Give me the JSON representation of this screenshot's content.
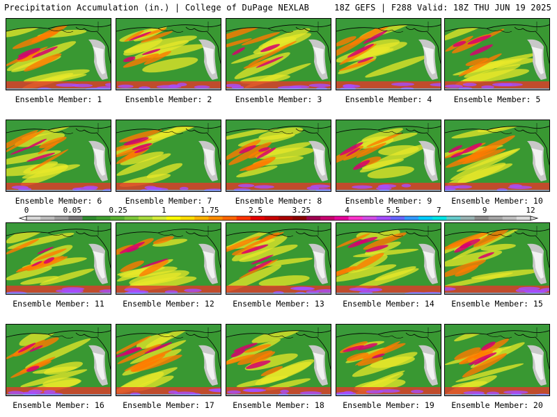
{
  "header": {
    "left": "Precipitation Accumulation (in.) | College of DuPage NEXLAB",
    "right": "18Z GEFS | F288 Valid: 18Z THU JUN 19 2025"
  },
  "panels": [
    {
      "label": "Ensemble Member: 1"
    },
    {
      "label": "Ensemble Member: 2"
    },
    {
      "label": "Ensemble Member: 3"
    },
    {
      "label": "Ensemble Member: 4"
    },
    {
      "label": "Ensemble Member: 5"
    },
    {
      "label": "Ensemble Member: 6"
    },
    {
      "label": "Ensemble Member: 7"
    },
    {
      "label": "Ensemble Member: 8"
    },
    {
      "label": "Ensemble Member: 9"
    },
    {
      "label": "Ensemble Member: 10"
    },
    {
      "label": "Ensemble Member: 11"
    },
    {
      "label": "Ensemble Member: 12"
    },
    {
      "label": "Ensemble Member: 13"
    },
    {
      "label": "Ensemble Member: 14"
    },
    {
      "label": "Ensemble Member: 15"
    },
    {
      "label": "Ensemble Member: 16"
    },
    {
      "label": "Ensemble Member: 17"
    },
    {
      "label": "Ensemble Member: 18"
    },
    {
      "label": "Ensemble Member: 19"
    },
    {
      "label": "Ensemble Member: 20"
    }
  ],
  "colorbar": {
    "ticks": [
      "0",
      "0.05",
      "0.25",
      "1",
      "1.75",
      "2.5",
      "3.25",
      "4",
      "5.5",
      "7",
      "9",
      "12"
    ],
    "colors": [
      "#d9d9d9",
      "#bdbdbd",
      "#9e9e9e",
      "#7a7a7a",
      "#2e8b2e",
      "#3f9f2f",
      "#58b030",
      "#7cc83a",
      "#a6da3c",
      "#d4ec3a",
      "#ffff00",
      "#ffdd00",
      "#ffb300",
      "#ff8c00",
      "#ff6600",
      "#ff3300",
      "#e60000",
      "#c80000",
      "#aa0000",
      "#8b0000",
      "#a00050",
      "#c8006e",
      "#e6009a",
      "#ff33cc",
      "#d24de6",
      "#a64dff",
      "#6666ff",
      "#3399ff",
      "#00ccff",
      "#00e6e6",
      "#66cccc",
      "#99b3b3",
      "#8c8c8c",
      "#a6a6a6",
      "#c0c0c0",
      "#dcdcdc"
    ]
  }
}
